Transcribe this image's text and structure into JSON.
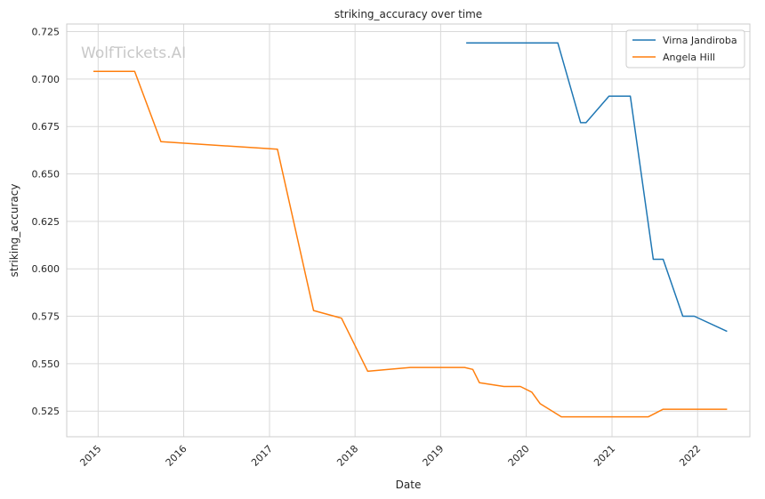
{
  "chart_data": {
    "type": "line",
    "title": "striking_accuracy over time",
    "xlabel": "Date",
    "ylabel": "striking_accuracy",
    "watermark": "WolfTickets.AI",
    "x_ticks": [
      "2015",
      "2016",
      "2017",
      "2018",
      "2019",
      "2020",
      "2021",
      "2022"
    ],
    "y_ticks": [
      "0.525",
      "0.550",
      "0.575",
      "0.600",
      "0.625",
      "0.650",
      "0.675",
      "0.700",
      "0.725"
    ],
    "xlim": [
      "2014-08-20",
      "2022-08-12"
    ],
    "ylim": [
      0.5115,
      0.729
    ],
    "grid": true,
    "legend_position": "top-right",
    "series": [
      {
        "name": "Virna Jandiroba",
        "color": "#1f77b4",
        "points": [
          [
            "2019-04-20",
            0.719
          ],
          [
            "2020-05-15",
            0.719
          ],
          [
            "2020-08-20",
            0.677
          ],
          [
            "2020-09-12",
            0.677
          ],
          [
            "2020-12-19",
            0.691
          ],
          [
            "2021-03-20",
            0.691
          ],
          [
            "2021-06-26",
            0.605
          ],
          [
            "2021-08-07",
            0.605
          ],
          [
            "2021-10-30",
            0.575
          ],
          [
            "2021-12-18",
            0.575
          ],
          [
            "2022-05-07",
            0.567
          ]
        ]
      },
      {
        "name": "Angela Hill",
        "color": "#ff7f0e",
        "points": [
          [
            "2014-12-12",
            0.704
          ],
          [
            "2015-06-06",
            0.704
          ],
          [
            "2015-09-26",
            0.667
          ],
          [
            "2017-02-04",
            0.663
          ],
          [
            "2017-07-08",
            0.578
          ],
          [
            "2017-11-04",
            0.574
          ],
          [
            "2018-02-24",
            0.546
          ],
          [
            "2018-05-25",
            0.547
          ],
          [
            "2018-08-25",
            0.548
          ],
          [
            "2019-02-16",
            0.548
          ],
          [
            "2019-04-13",
            0.548
          ],
          [
            "2019-05-18",
            0.547
          ],
          [
            "2019-06-15",
            0.54
          ],
          [
            "2019-09-28",
            0.538
          ],
          [
            "2019-12-07",
            0.538
          ],
          [
            "2020-01-25",
            0.535
          ],
          [
            "2020-02-29",
            0.529
          ],
          [
            "2020-05-30",
            0.522
          ],
          [
            "2020-08-01",
            0.522
          ],
          [
            "2020-09-26",
            0.522
          ],
          [
            "2020-12-12",
            0.522
          ],
          [
            "2021-02-27",
            0.522
          ],
          [
            "2021-06-05",
            0.522
          ],
          [
            "2021-08-07",
            0.526
          ],
          [
            "2021-10-23",
            0.526
          ],
          [
            "2021-12-11",
            0.526
          ],
          [
            "2022-05-07",
            0.526
          ]
        ]
      }
    ]
  }
}
